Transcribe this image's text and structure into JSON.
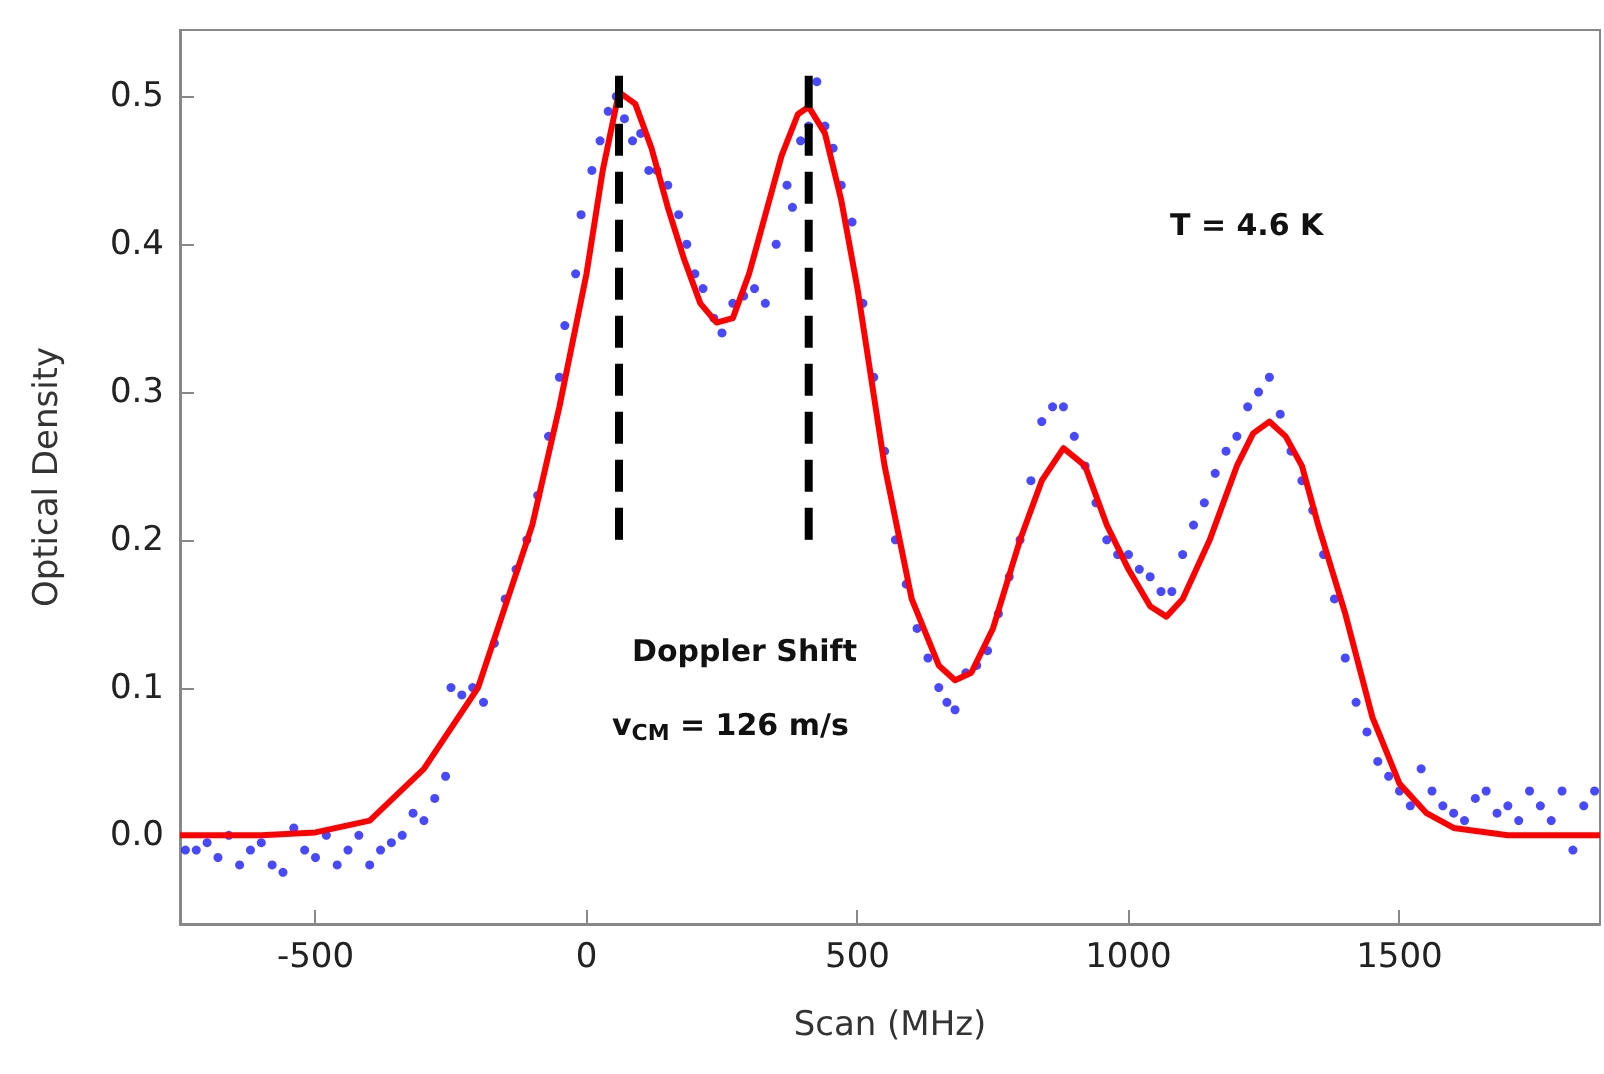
{
  "chart_data": {
    "type": "scatter",
    "xlabel": "Scan (MHz)",
    "ylabel": "Optical Density",
    "xlim": [
      -750,
      1870
    ],
    "ylim": [
      -0.06,
      0.545
    ],
    "xticks": [
      -500,
      0,
      500,
      1000,
      1500
    ],
    "yticks": [
      {
        "value": 0,
        "label": "0.0"
      },
      0.1,
      0.2,
      0.3,
      0.4,
      0.5
    ],
    "annotations": [
      "Doppler Shift",
      "v$_{CM}$ = 126 m/s",
      "T = 4.6 K"
    ],
    "series": [
      {
        "marker": "circle",
        "color": "#1a1aff",
        "x": [
          -740,
          -720,
          -700,
          -680,
          -660,
          -640,
          -620,
          -600,
          -580,
          -560,
          -540,
          -520,
          -500,
          -480,
          -460,
          -440,
          -420,
          -400,
          -380,
          -360,
          -340,
          -320,
          -300,
          -280,
          -260,
          -250,
          -230,
          -210,
          -190,
          -170,
          -150,
          -130,
          -110,
          -90,
          -70,
          -50,
          -40,
          -20,
          -10,
          10,
          25,
          40,
          55,
          70,
          85,
          100,
          115,
          130,
          150,
          170,
          185,
          200,
          215,
          235,
          250,
          270,
          290,
          310,
          330,
          350,
          370,
          380,
          395,
          410,
          425,
          440,
          455,
          470,
          490,
          510,
          530,
          550,
          570,
          590,
          610,
          630,
          650,
          665,
          680,
          700,
          720,
          740,
          760,
          780,
          800,
          820,
          840,
          860,
          880,
          900,
          920,
          940,
          960,
          980,
          1000,
          1020,
          1040,
          1060,
          1080,
          1100,
          1120,
          1140,
          1160,
          1180,
          1200,
          1220,
          1240,
          1260,
          1280,
          1300,
          1320,
          1340,
          1360,
          1380,
          1400,
          1420,
          1440,
          1460,
          1480,
          1500,
          1520,
          1540,
          1560,
          1580,
          1600,
          1620,
          1640,
          1660,
          1680,
          1700,
          1720,
          1740,
          1760,
          1780,
          1800,
          1820,
          1840,
          1860
        ],
        "values": [
          -0.01,
          -0.01,
          -0.005,
          -0.015,
          0.0,
          -0.02,
          -0.01,
          -0.005,
          -0.02,
          -0.025,
          0.005,
          -0.01,
          -0.015,
          0.0,
          -0.02,
          -0.01,
          0.0,
          -0.02,
          -0.01,
          -0.005,
          0.0,
          0.015,
          0.01,
          0.025,
          0.04,
          0.1,
          0.095,
          0.1,
          0.09,
          0.13,
          0.16,
          0.18,
          0.2,
          0.23,
          0.27,
          0.31,
          0.345,
          0.38,
          0.42,
          0.45,
          0.47,
          0.49,
          0.5,
          0.485,
          0.47,
          0.475,
          0.45,
          0.45,
          0.44,
          0.42,
          0.4,
          0.38,
          0.37,
          0.35,
          0.34,
          0.36,
          0.365,
          0.37,
          0.36,
          0.4,
          0.44,
          0.425,
          0.47,
          0.48,
          0.51,
          0.48,
          0.465,
          0.44,
          0.415,
          0.36,
          0.31,
          0.26,
          0.2,
          0.17,
          0.14,
          0.12,
          0.1,
          0.09,
          0.085,
          0.11,
          0.115,
          0.125,
          0.15,
          0.175,
          0.2,
          0.24,
          0.28,
          0.29,
          0.29,
          0.27,
          0.25,
          0.225,
          0.2,
          0.19,
          0.19,
          0.18,
          0.175,
          0.165,
          0.165,
          0.19,
          0.21,
          0.225,
          0.245,
          0.26,
          0.27,
          0.29,
          0.3,
          0.31,
          0.285,
          0.26,
          0.24,
          0.22,
          0.19,
          0.16,
          0.12,
          0.09,
          0.07,
          0.05,
          0.04,
          0.03,
          0.02,
          0.045,
          0.03,
          0.02,
          0.015,
          0.01,
          0.025,
          0.03,
          0.015,
          0.02,
          0.01,
          0.03,
          0.02,
          0.01,
          0.03,
          -0.01,
          0.02,
          0.03
        ]
      },
      {
        "type": "line",
        "marker": "none",
        "line_style": "solid",
        "color": "#ff0000",
        "x": [
          -750,
          -600,
          -500,
          -400,
          -300,
          -200,
          -100,
          -50,
          0,
          30,
          60,
          90,
          120,
          150,
          180,
          210,
          240,
          270,
          300,
          330,
          360,
          390,
          410,
          440,
          470,
          500,
          550,
          600,
          650,
          680,
          710,
          750,
          800,
          840,
          880,
          920,
          960,
          1000,
          1040,
          1070,
          1100,
          1150,
          1200,
          1230,
          1260,
          1290,
          1320,
          1350,
          1400,
          1450,
          1500,
          1550,
          1600,
          1700,
          1870
        ],
        "values": [
          0,
          0,
          0.002,
          0.01,
          0.045,
          0.1,
          0.21,
          0.29,
          0.38,
          0.45,
          0.503,
          0.495,
          0.465,
          0.425,
          0.39,
          0.36,
          0.347,
          0.35,
          0.38,
          0.42,
          0.46,
          0.488,
          0.493,
          0.475,
          0.43,
          0.37,
          0.25,
          0.16,
          0.115,
          0.105,
          0.11,
          0.14,
          0.2,
          0.24,
          0.262,
          0.25,
          0.21,
          0.18,
          0.155,
          0.148,
          0.16,
          0.2,
          0.25,
          0.272,
          0.28,
          0.27,
          0.25,
          0.21,
          0.15,
          0.08,
          0.035,
          0.015,
          0.005,
          0,
          0
        ]
      },
      {
        "type": "line",
        "marker": "none",
        "line_style": "dashed",
        "color": "#000000",
        "x": [
          60,
          60
        ],
        "values": [
          0.2,
          0.52
        ]
      },
      {
        "type": "line",
        "marker": "none",
        "line_style": "dashed",
        "color": "#000000",
        "x": [
          410,
          410
        ],
        "values": [
          0.2,
          0.52
        ]
      }
    ]
  }
}
